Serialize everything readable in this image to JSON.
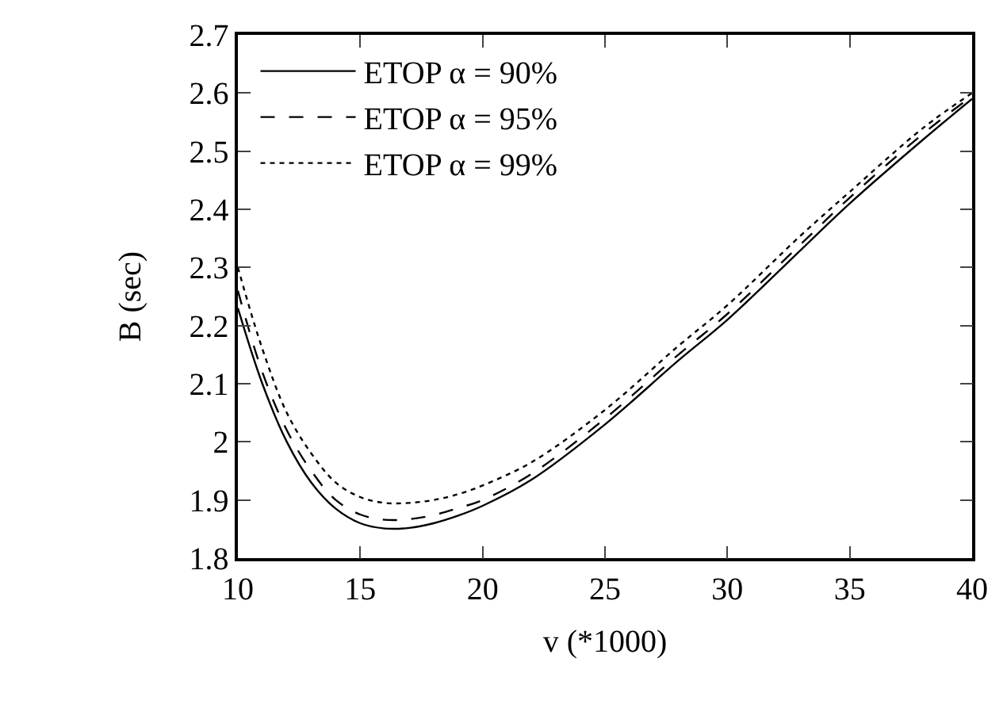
{
  "chart_data": {
    "type": "line",
    "xlabel": "v (*1000)",
    "ylabel": "B (sec)",
    "x": [
      10,
      11,
      12,
      13,
      14,
      15,
      16,
      17,
      18,
      19,
      20,
      22,
      25,
      28,
      30,
      33,
      35,
      38,
      40
    ],
    "xlim": [
      10,
      40
    ],
    "xticks": [
      10,
      15,
      20,
      25,
      30,
      35,
      40
    ],
    "ylim": [
      1.8,
      2.7
    ],
    "yticks": [
      1.8,
      1.9,
      2,
      2.1,
      2.2,
      2.3,
      2.4,
      2.5,
      2.6,
      2.7
    ],
    "legend": "top left",
    "marker": "none",
    "series": [
      {
        "name": "ETOP α = 90%",
        "color": "#000000",
        "line_style": "solid",
        "values": [
          2.23,
          2.1,
          2.0,
          1.93,
          1.885,
          1.86,
          1.851,
          1.852,
          1.86,
          1.873,
          1.89,
          1.935,
          2.03,
          2.14,
          2.21,
          2.33,
          2.41,
          2.52,
          2.59
        ]
      },
      {
        "name": "ETOP α = 95%",
        "color": "#000000",
        "line_style": "dashed",
        "values": [
          2.26,
          2.12,
          2.02,
          1.95,
          1.9,
          1.875,
          1.866,
          1.867,
          1.874,
          1.886,
          1.9,
          1.945,
          2.04,
          2.15,
          2.22,
          2.34,
          2.42,
          2.53,
          2.595
        ]
      },
      {
        "name": "ETOP α = 99%",
        "color": "#000000",
        "line_style": "dotted",
        "values": [
          2.3,
          2.16,
          2.05,
          1.98,
          1.93,
          1.905,
          1.895,
          1.895,
          1.9,
          1.91,
          1.925,
          1.965,
          2.055,
          2.165,
          2.235,
          2.355,
          2.43,
          2.54,
          2.6
        ]
      }
    ]
  }
}
